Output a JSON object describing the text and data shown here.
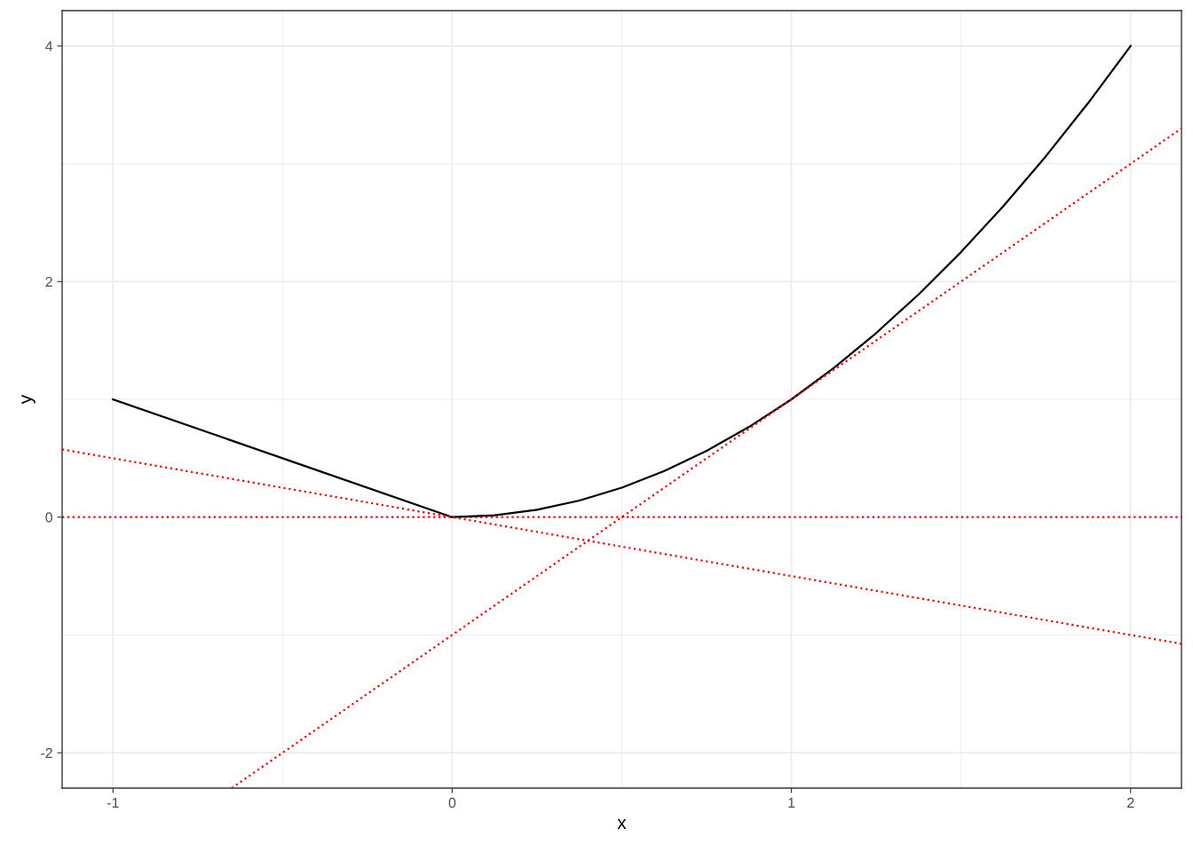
{
  "chart_data": {
    "type": "line",
    "xlabel": "x",
    "ylabel": "y",
    "xlim": [
      -1.15,
      2.15
    ],
    "ylim": [
      -2.3,
      4.3
    ],
    "xticks": [
      -1,
      0,
      1,
      2
    ],
    "yticks": [
      -2,
      0,
      2,
      4
    ],
    "grid": true,
    "legend": false,
    "series": [
      {
        "color": "#000000",
        "line_style": "solid",
        "x": [
          -1,
          -0.5,
          0,
          0.125,
          0.25,
          0.375,
          0.5,
          0.625,
          0.75,
          0.875,
          1,
          1.125,
          1.25,
          1.375,
          1.5,
          1.625,
          1.75,
          1.875,
          2
        ],
        "values": [
          1,
          0.5,
          0,
          0.016,
          0.063,
          0.141,
          0.25,
          0.391,
          0.563,
          0.766,
          1,
          1.266,
          1.563,
          1.891,
          2.25,
          2.641,
          3.063,
          3.516,
          4
        ]
      },
      {
        "color": "#ff0000",
        "line_style": "dotted",
        "x": [
          -1.15,
          2.15
        ],
        "values": [
          0.575,
          -1.075
        ]
      },
      {
        "color": "#ff0000",
        "line_style": "dotted",
        "x": [
          -0.65,
          2.15
        ],
        "values": [
          -2.3,
          3.3
        ]
      }
    ],
    "ref_lines": [
      {
        "axis": "y",
        "value": 0,
        "color": "#ff0000",
        "line_style": "dotted"
      }
    ]
  }
}
